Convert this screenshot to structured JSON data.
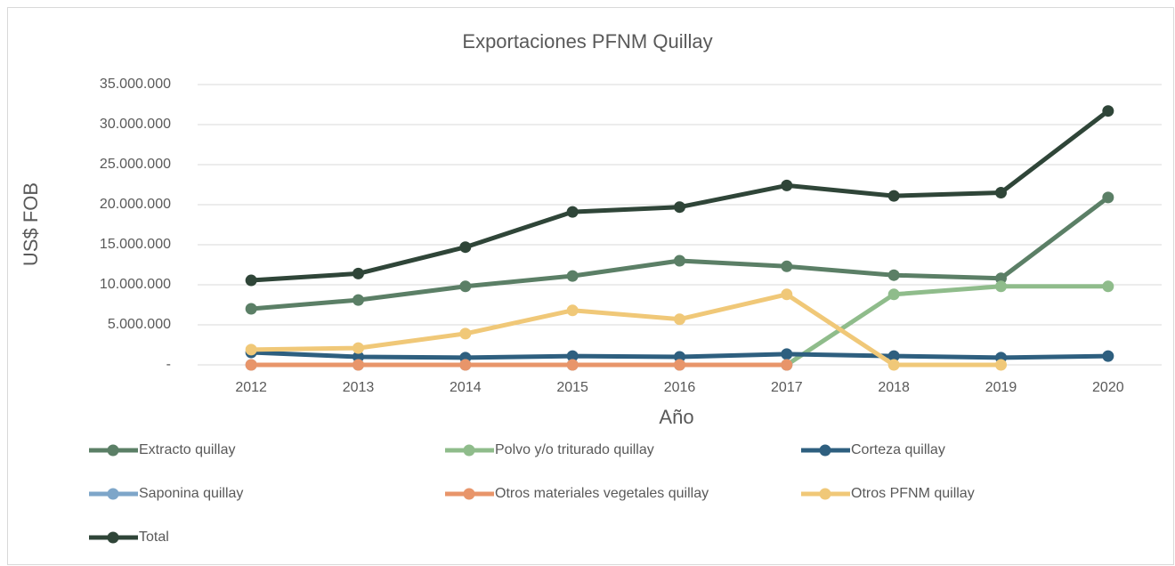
{
  "chart_data": {
    "type": "line",
    "title": "Exportaciones PFNM Quillay",
    "x_label": "Año",
    "y_label": "US$ FOB",
    "categories": [
      "2012",
      "2013",
      "2014",
      "2015",
      "2016",
      "2017",
      "2018",
      "2019",
      "2020"
    ],
    "ylim": [
      0,
      35000000
    ],
    "yticks": [
      {
        "value": 0,
        "label": "-"
      },
      {
        "value": 5000000,
        "label": "5.000.000"
      },
      {
        "value": 10000000,
        "label": "10.000.000"
      },
      {
        "value": 15000000,
        "label": "15.000.000"
      },
      {
        "value": 20000000,
        "label": "20.000.000"
      },
      {
        "value": 25000000,
        "label": "25.000.000"
      },
      {
        "value": 30000000,
        "label": "30.000.000"
      },
      {
        "value": 35000000,
        "label": "35.000.000"
      }
    ],
    "grid": true,
    "legend": "bottom",
    "series": [
      {
        "name": "Extracto quillay",
        "color": "#5b7f66",
        "values": [
          7000000,
          8100000,
          9800000,
          11100000,
          13000000,
          12300000,
          11200000,
          10800000,
          20900000
        ]
      },
      {
        "name": "Polvo y/o triturado quillay",
        "color": "#8fbc8b",
        "values": [
          null,
          null,
          null,
          null,
          null,
          0,
          8800000,
          9800000,
          9800000
        ]
      },
      {
        "name": "Corteza quillay",
        "color": "#2e5f7f",
        "values": [
          1550000,
          1000000,
          900000,
          1100000,
          1000000,
          1350000,
          1100000,
          900000,
          1100000
        ]
      },
      {
        "name": "Saponina quillay",
        "color": "#7ea6c9",
        "values": [
          0,
          0,
          0,
          0,
          0,
          0,
          null,
          null,
          null
        ]
      },
      {
        "name": "Otros materiales vegetales quillay",
        "color": "#e8956a",
        "values": [
          0,
          0,
          0,
          0,
          0,
          0,
          null,
          null,
          null
        ]
      },
      {
        "name": "Otros PFNM quillay",
        "color": "#f0c878",
        "values": [
          1900000,
          2100000,
          3900000,
          6800000,
          5700000,
          8800000,
          0,
          0,
          null
        ]
      },
      {
        "name": "Total",
        "color": "#2f4538",
        "values": [
          10550000,
          11400000,
          14700000,
          19100000,
          19700000,
          22400000,
          21100000,
          21500000,
          31700000
        ]
      }
    ]
  }
}
